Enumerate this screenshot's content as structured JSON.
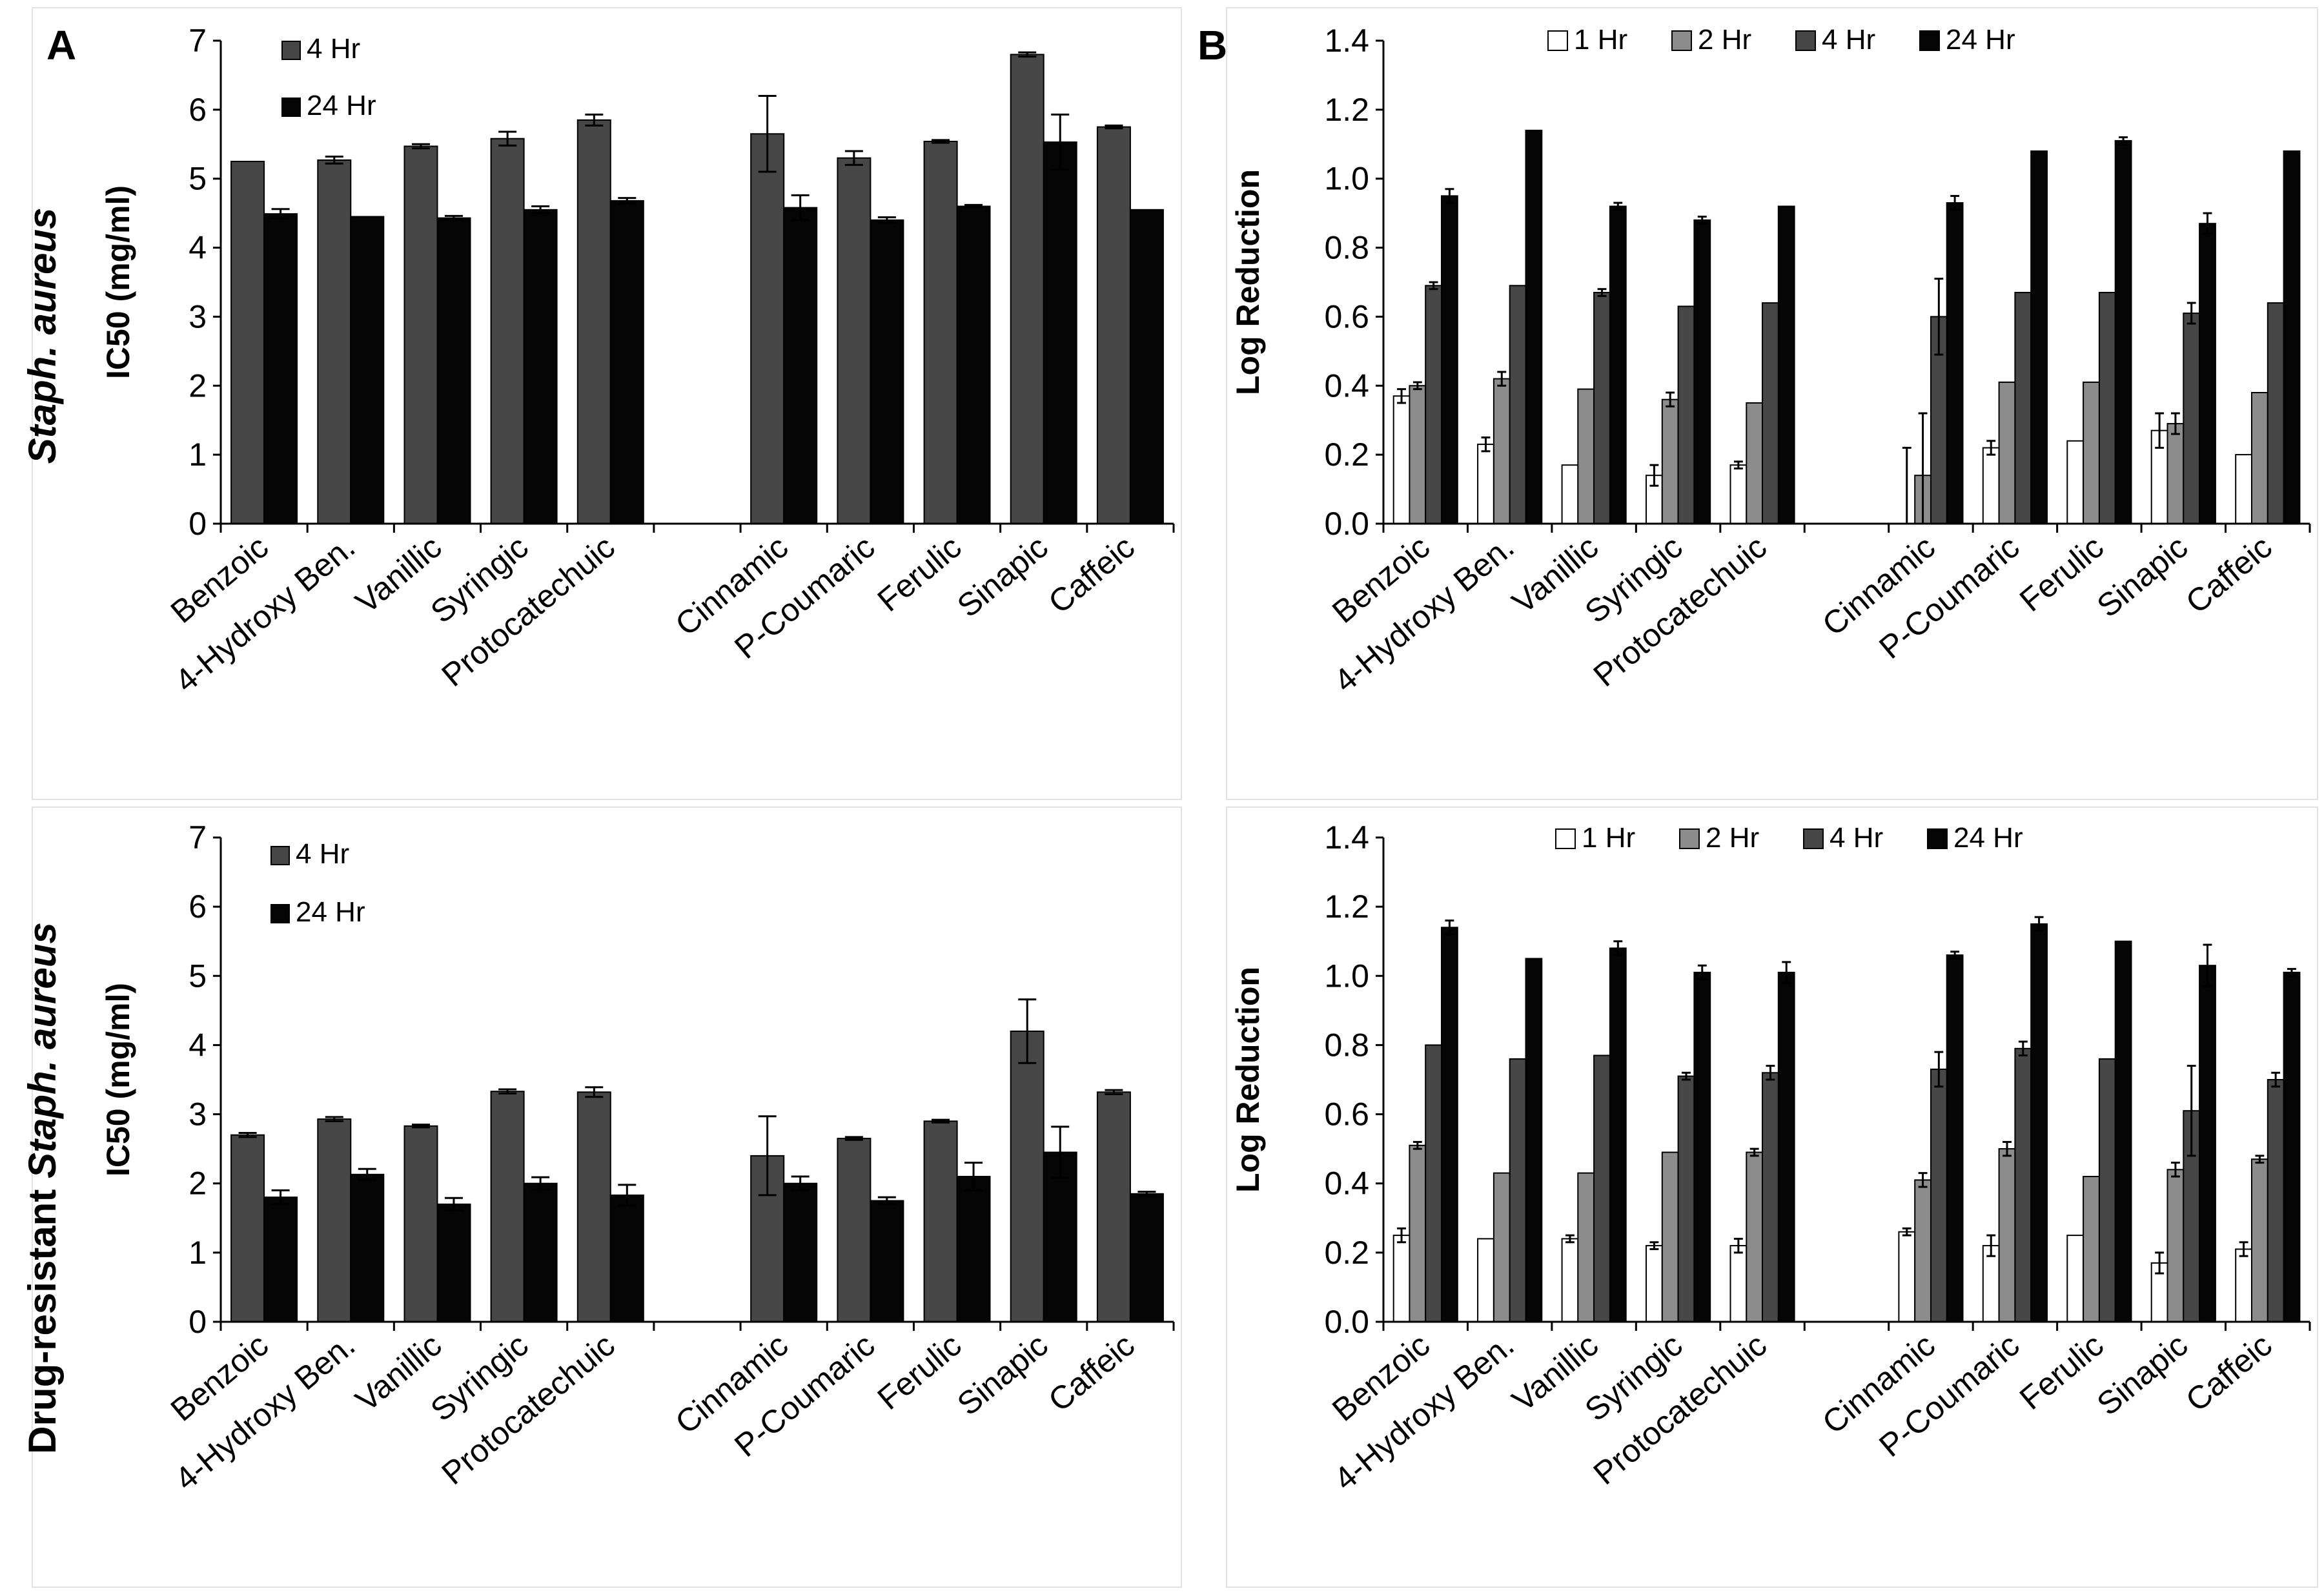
{
  "figure": {
    "panel_letters": [
      "A",
      "B"
    ],
    "row_labels": [
      {
        "prefix": "",
        "italic": "Staph. aureus"
      },
      {
        "prefix": "Drug-resistant ",
        "italic": "Staph. aureus"
      }
    ]
  },
  "colors": {
    "1 Hr": "#ffffff",
    "2 Hr": "#8c8c8c",
    "4 Hr": "#474747",
    "24 Hr": "#050505",
    "axis": "#000000",
    "panel_border": "#dcdcdc"
  },
  "chart_data": [
    {
      "id": "A-top",
      "type": "bar",
      "ylabel": "IC50 (mg/ml)",
      "ylim": [
        0,
        7
      ],
      "yticks": [
        0,
        1,
        2,
        3,
        4,
        5,
        6,
        7
      ],
      "ytick_labels": [
        "0",
        "1",
        "2",
        "3",
        "4",
        "5",
        "6",
        "7"
      ],
      "legend_position": "top-left",
      "legend_layout": "vertical",
      "categories": [
        "Benzoic",
        "4-Hydroxy Ben.",
        "Vanillic",
        "Syringic",
        "Protocatechuic",
        "",
        "Cinnamic",
        "P-Coumaric",
        "Ferulic",
        "Sinapic",
        "Caffeic"
      ],
      "series": [
        {
          "name": "4 Hr",
          "values": [
            5.25,
            5.27,
            5.47,
            5.58,
            5.85,
            null,
            5.65,
            5.3,
            5.54,
            6.8,
            5.75
          ],
          "errors": [
            0.0,
            0.05,
            0.03,
            0.1,
            0.08,
            null,
            0.55,
            0.1,
            0.02,
            0.03,
            0.02
          ]
        },
        {
          "name": "24 Hr",
          "values": [
            4.49,
            4.45,
            4.43,
            4.55,
            4.68,
            null,
            4.58,
            4.4,
            4.6,
            5.53,
            4.55
          ],
          "errors": [
            0.07,
            0.0,
            0.03,
            0.05,
            0.04,
            null,
            0.18,
            0.04,
            0.02,
            0.4,
            0.0
          ]
        }
      ]
    },
    {
      "id": "B-top",
      "type": "bar",
      "ylabel": "Log Reduction",
      "ylim": [
        0,
        1.4
      ],
      "yticks": [
        0,
        0.2,
        0.4,
        0.6,
        0.8,
        1.0,
        1.2,
        1.4
      ],
      "ytick_labels": [
        "0.0",
        "0.2",
        "0.4",
        "0.6",
        "0.8",
        "1.0",
        "1.2",
        "1.4"
      ],
      "legend_position": "top-center",
      "legend_layout": "horizontal",
      "categories": [
        "Benzoic",
        "4-Hydroxy Ben.",
        "Vanillic",
        "Syringic",
        "Protocatechuic",
        "",
        "Cinnamic",
        "P-Coumaric",
        "Ferulic",
        "Sinapic",
        "Caffeic"
      ],
      "series": [
        {
          "name": "1 Hr",
          "values": [
            0.37,
            0.23,
            0.17,
            0.14,
            0.17,
            null,
            0.0,
            0.22,
            0.24,
            0.27,
            0.2
          ],
          "errors": [
            0.02,
            0.02,
            0.0,
            0.03,
            0.01,
            null,
            0.22,
            0.02,
            0.0,
            0.05,
            0.0
          ]
        },
        {
          "name": "2 Hr",
          "values": [
            0.4,
            0.42,
            0.39,
            0.36,
            0.35,
            null,
            0.14,
            0.41,
            0.41,
            0.29,
            0.38
          ],
          "errors": [
            0.01,
            0.02,
            0.0,
            0.02,
            0.0,
            null,
            0.18,
            0.0,
            0.0,
            0.03,
            0.0
          ]
        },
        {
          "name": "4 Hr",
          "values": [
            0.69,
            0.69,
            0.67,
            0.63,
            0.64,
            null,
            0.6,
            0.67,
            0.67,
            0.61,
            0.64
          ],
          "errors": [
            0.01,
            0.0,
            0.01,
            0.0,
            0.0,
            null,
            0.11,
            0.0,
            0.0,
            0.03,
            0.0
          ]
        },
        {
          "name": "24 Hr",
          "values": [
            0.95,
            1.14,
            0.92,
            0.88,
            0.92,
            null,
            0.93,
            1.08,
            1.11,
            0.87,
            1.08
          ],
          "errors": [
            0.02,
            0.0,
            0.01,
            0.01,
            0.0,
            null,
            0.02,
            0.0,
            0.01,
            0.03,
            0.0
          ]
        }
      ]
    },
    {
      "id": "A-bottom",
      "type": "bar",
      "ylabel": "IC50 (mg/ml)",
      "ylim": [
        0,
        7
      ],
      "yticks": [
        0,
        1,
        2,
        3,
        4,
        5,
        6,
        7
      ],
      "ytick_labels": [
        "0",
        "1",
        "2",
        "3",
        "4",
        "5",
        "6",
        "7"
      ],
      "legend_position": "top-left",
      "legend_layout": "vertical",
      "categories": [
        "Benzoic",
        "4-Hydroxy Ben.",
        "Vanillic",
        "Syringic",
        "Protocatechuic",
        "",
        "Cinnamic",
        "P-Coumaric",
        "Ferulic",
        "Sinapic",
        "Caffeic"
      ],
      "series": [
        {
          "name": "4 Hr",
          "values": [
            2.7,
            2.93,
            2.83,
            3.33,
            3.32,
            null,
            2.4,
            2.65,
            2.9,
            4.2,
            3.32
          ],
          "errors": [
            0.03,
            0.03,
            0.02,
            0.03,
            0.07,
            null,
            0.57,
            0.02,
            0.02,
            0.46,
            0.03
          ]
        },
        {
          "name": "24 Hr",
          "values": [
            1.8,
            2.13,
            1.7,
            2.0,
            1.83,
            null,
            2.0,
            1.75,
            2.1,
            2.45,
            1.85
          ],
          "errors": [
            0.1,
            0.08,
            0.09,
            0.09,
            0.15,
            null,
            0.1,
            0.05,
            0.2,
            0.37,
            0.03
          ]
        }
      ]
    },
    {
      "id": "B-bottom",
      "type": "bar",
      "ylabel": "Log Reduction",
      "ylim": [
        0,
        1.4
      ],
      "yticks": [
        0,
        0.2,
        0.4,
        0.6,
        0.8,
        1.0,
        1.2,
        1.4
      ],
      "ytick_labels": [
        "0.0",
        "0.2",
        "0.4",
        "0.6",
        "0.8",
        "1.0",
        "1.2",
        "1.4"
      ],
      "legend_position": "top-center",
      "legend_layout": "horizontal",
      "categories": [
        "Benzoic",
        "4-Hydroxy Ben.",
        "Vanillic",
        "Syringic",
        "Protocatechuic",
        "",
        "Cinnamic",
        "P-Coumaric",
        "Ferulic",
        "Sinapic",
        "Caffeic"
      ],
      "series": [
        {
          "name": "1 Hr",
          "values": [
            0.25,
            0.24,
            0.24,
            0.22,
            0.22,
            null,
            0.26,
            0.22,
            0.25,
            0.17,
            0.21
          ],
          "errors": [
            0.02,
            0.0,
            0.01,
            0.01,
            0.02,
            null,
            0.01,
            0.03,
            0.0,
            0.03,
            0.02
          ]
        },
        {
          "name": "2 Hr",
          "values": [
            0.51,
            0.43,
            0.43,
            0.49,
            0.49,
            null,
            0.41,
            0.5,
            0.42,
            0.44,
            0.47
          ],
          "errors": [
            0.01,
            0.0,
            0.0,
            0.0,
            0.01,
            null,
            0.02,
            0.02,
            0.0,
            0.02,
            0.01
          ]
        },
        {
          "name": "4 Hr",
          "values": [
            0.8,
            0.76,
            0.77,
            0.71,
            0.72,
            null,
            0.73,
            0.79,
            0.76,
            0.61,
            0.7
          ],
          "errors": [
            0.0,
            0.0,
            0.0,
            0.01,
            0.02,
            null,
            0.05,
            0.02,
            0.0,
            0.13,
            0.02
          ]
        },
        {
          "name": "24 Hr",
          "values": [
            1.14,
            1.05,
            1.08,
            1.01,
            1.01,
            null,
            1.06,
            1.15,
            1.1,
            1.03,
            1.01
          ],
          "errors": [
            0.02,
            0.0,
            0.02,
            0.02,
            0.03,
            null,
            0.01,
            0.02,
            0.0,
            0.06,
            0.01
          ]
        }
      ]
    }
  ]
}
